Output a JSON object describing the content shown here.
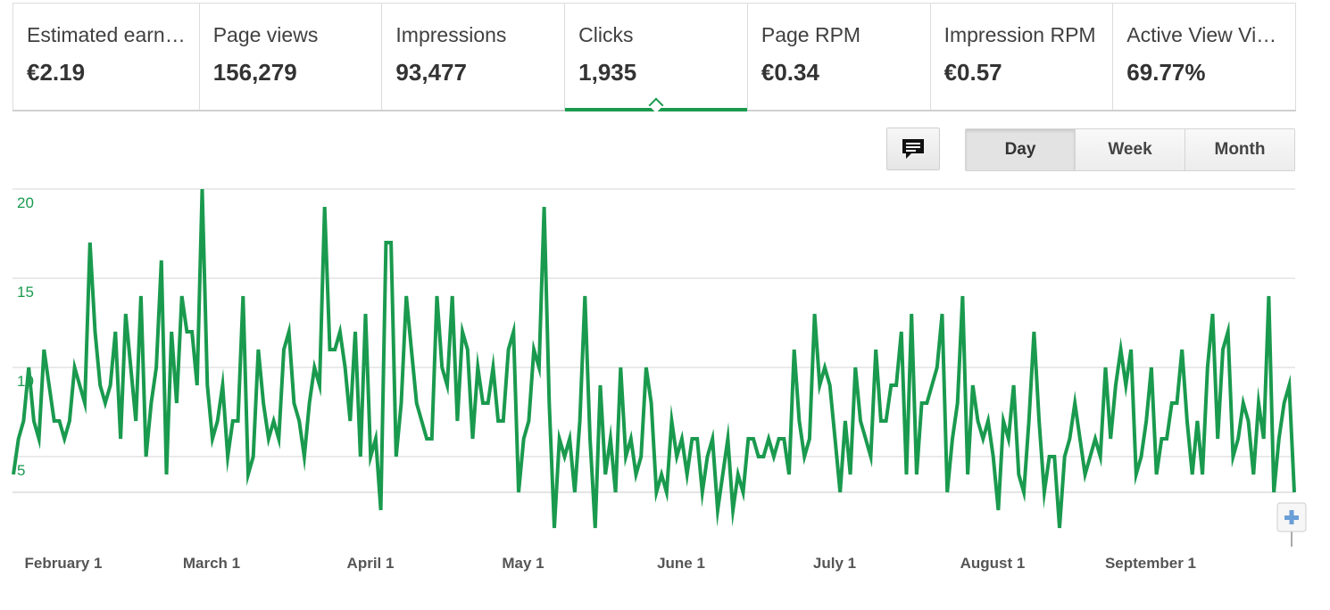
{
  "metrics": [
    {
      "label": "Estimated earn…",
      "value": "€2.19",
      "active": false
    },
    {
      "label": "Page views",
      "value": "156,279",
      "active": false
    },
    {
      "label": "Impressions",
      "value": "93,477",
      "active": false
    },
    {
      "label": "Clicks",
      "value": "1,935",
      "active": true
    },
    {
      "label": "Page RPM",
      "value": "€0.34",
      "active": false
    },
    {
      "label": "Impression RPM",
      "value": "€0.57",
      "active": false
    },
    {
      "label": "Active View Vi…",
      "value": "69.77%",
      "active": false
    }
  ],
  "toolbar": {
    "annotation_icon": "comment-icon",
    "ranges": [
      "Day",
      "Week",
      "Month"
    ],
    "selected_range": "Day"
  },
  "colors": {
    "series": "#1a9a4e",
    "grid": "#d6d6d6",
    "axis_label": "#555555"
  },
  "chart_data": {
    "type": "line",
    "title": "",
    "xlabel": "",
    "ylabel": "",
    "ylim": [
      3,
      20
    ],
    "y_ticks": [
      5,
      10,
      15,
      20
    ],
    "x_tick_labels": [
      "February 1",
      "March 1",
      "April 1",
      "May 1",
      "June 1",
      "July 1",
      "August 1",
      "September 1"
    ],
    "grid": true,
    "legend": "none",
    "zoom_icon": "plus-icon",
    "series": [
      {
        "values": [
          4,
          6,
          7,
          10,
          7,
          6,
          11,
          9,
          7,
          7,
          6,
          7,
          10,
          9,
          8,
          17,
          12,
          9,
          8,
          9,
          12,
          6,
          13,
          10,
          7,
          14,
          5,
          8,
          10,
          16,
          4,
          12,
          8,
          14,
          12,
          12,
          9,
          20,
          9,
          6,
          7,
          9,
          5,
          7,
          7,
          14,
          4,
          5,
          11,
          8,
          6,
          7,
          6,
          11,
          12,
          8,
          7,
          5,
          8,
          10,
          9,
          19,
          11,
          11,
          12,
          10,
          7,
          12,
          5,
          13,
          5,
          6,
          2,
          17,
          17,
          5,
          8,
          14,
          11,
          8,
          7,
          6,
          6,
          14,
          10,
          9,
          14,
          7,
          12,
          11,
          6,
          10,
          8,
          8,
          10,
          7,
          7,
          11,
          12,
          3,
          6,
          7,
          11,
          10,
          19,
          8,
          1,
          6,
          5,
          6,
          3,
          7,
          14,
          6,
          1,
          9,
          4,
          6,
          3,
          10,
          5,
          6,
          4,
          5,
          10,
          8,
          3,
          4,
          3,
          7,
          5,
          6,
          4,
          6,
          6,
          3,
          5,
          6,
          2,
          4,
          6,
          2,
          4,
          3,
          6,
          6,
          5,
          5,
          6,
          5,
          6,
          6,
          4,
          11,
          7,
          5,
          6,
          13,
          9,
          10,
          9,
          6,
          3,
          7,
          4,
          10,
          7,
          6,
          5,
          11,
          7,
          7,
          9,
          9,
          12,
          4,
          13,
          4,
          8,
          8,
          9,
          10,
          13,
          3,
          6,
          8,
          14,
          4,
          9,
          7,
          6,
          7,
          5,
          2,
          7,
          6,
          9,
          4,
          3,
          7,
          12,
          7,
          3,
          5,
          5,
          1,
          5,
          6,
          8,
          6,
          4,
          5,
          6,
          5,
          10,
          6,
          9,
          11,
          9,
          11,
          4,
          5,
          7,
          10,
          4,
          6,
          6,
          8,
          8,
          11,
          7,
          4,
          7,
          4,
          10,
          13,
          6,
          11,
          12,
          5,
          6,
          8,
          7,
          4,
          8,
          6,
          14,
          3,
          6,
          8,
          9,
          3
        ]
      }
    ]
  }
}
